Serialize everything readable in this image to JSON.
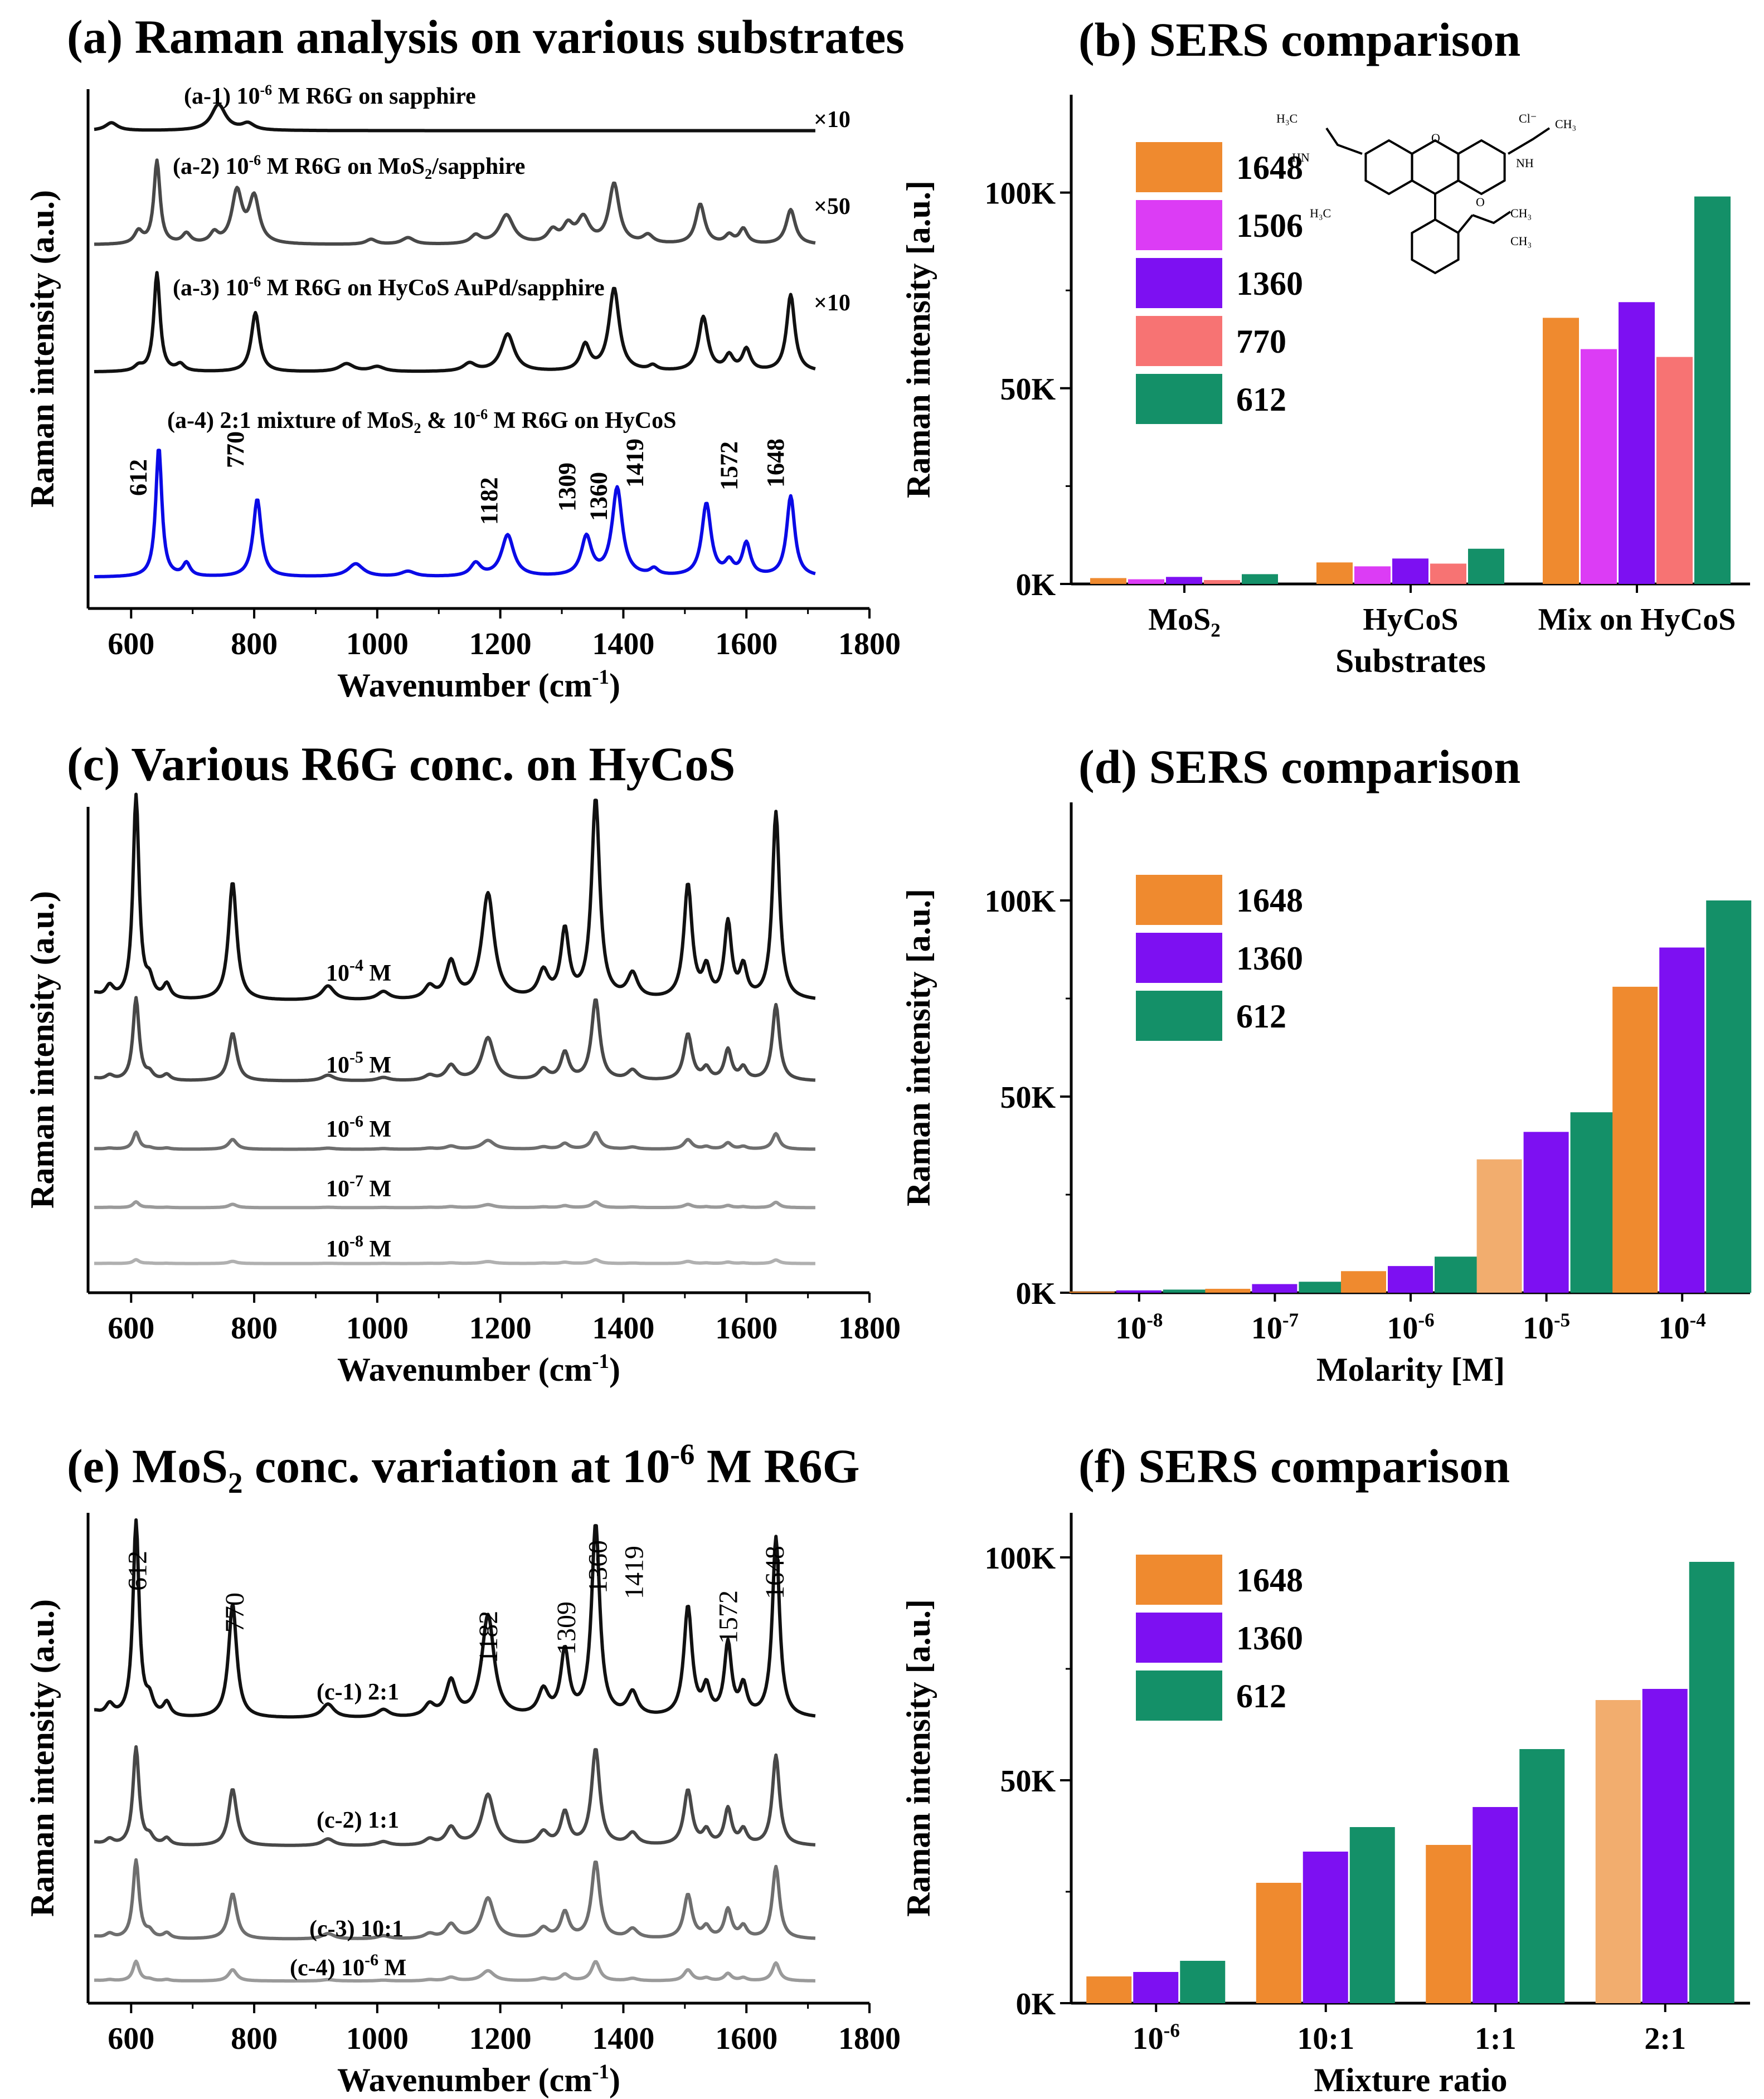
{
  "colors": {
    "c1648": "#ef8a2f",
    "c1648_light": "#f2ad6e",
    "c1506": "#dc3cf5",
    "c1360": "#7d10f2",
    "c770": "#f77373",
    "c612": "#149068",
    "blue": "#0a0ae6",
    "black": "#111111",
    "dark_gray": "#484848",
    "mid_gray": "#6e6e6e",
    "light_gray": "#9a9a9a",
    "lighter_gray": "#b0b0b0"
  },
  "chart_data": [
    {
      "id": "a",
      "type": "line",
      "title": "(a) Raman analysis on various substrates",
      "xlabel": "Wavenumber (cm",
      "xlabel_sup": "-1",
      "xlabel_end": ")",
      "ylabel": "Raman intensity (a.u.)",
      "xlim": [
        530,
        1800
      ],
      "xticks": [
        600,
        800,
        1000,
        1200,
        1400,
        1600,
        1800
      ],
      "series": [
        {
          "name": "(a-1) 10-6 M R6G on sapphire",
          "label_prefix": "(a-1) 10",
          "label_sup": "-6",
          "label_rest": " M R6G on sapphire",
          "multiplier": "×10",
          "color": "black",
          "baseline": 0.92,
          "scale": 0.05,
          "peaks": [
            [
              568,
              0.3,
              12
            ],
            [
              742,
              1.0,
              14
            ],
            [
              790,
              0.25,
              12
            ]
          ]
        },
        {
          "name": "(a-2) 10-6 M R6G on MoS2/sapphire",
          "label_prefix": "(a-2) 10",
          "label_sup": "-6",
          "label_rest": " M R6G on MoS",
          "label_sub": "2",
          "label_end": "/sapphire",
          "multiplier": "×50",
          "color": "dark_gray",
          "baseline": 0.7,
          "scale": 0.16,
          "peaks": [
            [
              612,
              0.15,
              8
            ],
            [
              642,
              1.0,
              6
            ],
            [
              690,
              0.12,
              8
            ],
            [
              735,
              0.12,
              8
            ],
            [
              772,
              0.62,
              10
            ],
            [
              800,
              0.55,
              10
            ],
            [
              990,
              0.06,
              10
            ],
            [
              1050,
              0.08,
              12
            ],
            [
              1160,
              0.1,
              10
            ],
            [
              1210,
              0.35,
              14
            ],
            [
              1285,
              0.15,
              10
            ],
            [
              1310,
              0.2,
              10
            ],
            [
              1335,
              0.3,
              12
            ],
            [
              1385,
              0.72,
              10
            ],
            [
              1440,
              0.1,
              10
            ],
            [
              1525,
              0.48,
              9
            ],
            [
              1572,
              0.1,
              8
            ],
            [
              1595,
              0.18,
              8
            ],
            [
              1672,
              0.42,
              9
            ]
          ]
        },
        {
          "name": "(a-3) 10-6 M R6G on HyCoS AuPd/sapphire",
          "label_prefix": "(a-3) 10",
          "label_sup": "-6",
          "label_rest": " M R6G on HyCoS AuPd/sapphire",
          "multiplier": "×10",
          "color": "black",
          "baseline": 0.455,
          "scale": 0.19,
          "peaks": [
            [
              612,
              0.05,
              8
            ],
            [
              642,
              1.0,
              6
            ],
            [
              680,
              0.07,
              8
            ],
            [
              802,
              0.6,
              8
            ],
            [
              950,
              0.08,
              14
            ],
            [
              1000,
              0.05,
              14
            ],
            [
              1150,
              0.08,
              12
            ],
            [
              1212,
              0.38,
              13
            ],
            [
              1338,
              0.26,
              9
            ],
            [
              1385,
              0.84,
              10
            ],
            [
              1448,
              0.05,
              8
            ],
            [
              1530,
              0.55,
              9
            ],
            [
              1572,
              0.15,
              8
            ],
            [
              1600,
              0.22,
              8
            ],
            [
              1672,
              0.78,
              8
            ]
          ]
        },
        {
          "name": "(a-4) 2:1 mixture of MoS2 & 10-6 M R6G on HyCoS",
          "label_prefix": "(a-4) 2:1 mixture of MoS",
          "label_sub": "2",
          "label_rest": " & 10",
          "label_sup": "-6",
          "label_end": " M R6G on HyCoS",
          "multiplier": "",
          "color": "blue",
          "baseline": 0.06,
          "scale": 0.25,
          "peaks": [
            [
              645,
              1.0,
              6
            ],
            [
              690,
              0.1,
              7
            ],
            [
              805,
              0.6,
              8
            ],
            [
              965,
              0.1,
              15
            ],
            [
              1050,
              0.04,
              14
            ],
            [
              1160,
              0.1,
              10
            ],
            [
              1212,
              0.32,
              12
            ],
            [
              1340,
              0.3,
              10
            ],
            [
              1390,
              0.68,
              10
            ],
            [
              1450,
              0.05,
              8
            ],
            [
              1535,
              0.56,
              9
            ],
            [
              1572,
              0.1,
              8
            ],
            [
              1600,
              0.25,
              8
            ],
            [
              1672,
              0.62,
              8
            ]
          ]
        }
      ],
      "peak_labels": [
        "612",
        "770",
        "1182",
        "1309",
        "1360",
        "1419",
        "1572",
        "1648"
      ]
    },
    {
      "id": "b",
      "type": "bar",
      "title": "(b) SERS comparison",
      "xlabel": "Substrates",
      "ylabel": "Raman intensity [a.u.]",
      "ylim": [
        0,
        125000
      ],
      "yticks": [
        0,
        50000,
        100000
      ],
      "ytick_labels": [
        "0K",
        "50K",
        "100K"
      ],
      "categories": [
        "MoS2",
        "HyCoS",
        "Mix on HyCoS"
      ],
      "category_parts": [
        [
          "MoS",
          "2"
        ],
        [
          "HyCoS",
          ""
        ],
        [
          "Mix on HyCoS",
          ""
        ]
      ],
      "series": [
        {
          "name": "1648",
          "color": "c1648",
          "values": [
            1500,
            5500,
            68000
          ]
        },
        {
          "name": "1506",
          "color": "c1506",
          "values": [
            1200,
            4500,
            60000
          ]
        },
        {
          "name": "1360",
          "color": "c1360",
          "values": [
            1800,
            6500,
            72000
          ]
        },
        {
          "name": "770",
          "color": "c770",
          "values": [
            1000,
            5200,
            58000
          ]
        },
        {
          "name": "612",
          "color": "c612",
          "values": [
            2500,
            9000,
            99000
          ]
        }
      ],
      "legend": [
        "1648",
        "1506",
        "1360",
        "770",
        "612"
      ],
      "inset": {
        "label": "R6G molecular structure",
        "atoms": [
          "H3C",
          "HN",
          "Cl-",
          "CH3",
          "NH",
          "H3C",
          "CH3",
          "O",
          "O",
          "CH3"
        ]
      }
    },
    {
      "id": "c",
      "type": "line",
      "title": "(c) Various R6G conc. on HyCoS",
      "xlabel": "Wavenumber (cm",
      "xlabel_sup": "-1",
      "xlabel_end": ")",
      "ylabel": "Raman intensity (a.u.)",
      "xlim": [
        530,
        1800
      ],
      "xticks": [
        600,
        800,
        1000,
        1200,
        1400,
        1600,
        1800
      ],
      "series": [
        {
          "name": "10-4 M",
          "label_prefix": "10",
          "label_sup": "-4",
          "label_rest": " M",
          "color": "black",
          "baseline": 0.6,
          "scale": 0.42
        },
        {
          "name": "10-5 M",
          "label_prefix": "10",
          "label_sup": "-5",
          "label_rest": " M",
          "color": "dark_gray",
          "baseline": 0.435,
          "scale": 0.17
        },
        {
          "name": "10-6 M",
          "label_prefix": "10",
          "label_sup": "-6",
          "label_rest": " M",
          "color": "mid_gray",
          "baseline": 0.295,
          "scale": 0.035
        },
        {
          "name": "10-7 M",
          "label_prefix": "10",
          "label_sup": "-7",
          "label_rest": " M",
          "color": "light_gray",
          "baseline": 0.175,
          "scale": 0.012
        },
        {
          "name": "10-8 M",
          "label_prefix": "10",
          "label_sup": "-8",
          "label_rest": " M",
          "color": "lighter_gray",
          "baseline": 0.06,
          "scale": 0.008
        }
      ],
      "peaks": [
        [
          540,
          0.03,
          12
        ],
        [
          565,
          0.06,
          8
        ],
        [
          608,
          1.0,
          6
        ],
        [
          630,
          0.08,
          7
        ],
        [
          658,
          0.07,
          7
        ],
        [
          765,
          0.58,
          8
        ],
        [
          920,
          0.07,
          12
        ],
        [
          1010,
          0.04,
          12
        ],
        [
          1085,
          0.06,
          10
        ],
        [
          1120,
          0.18,
          10
        ],
        [
          1180,
          0.52,
          12
        ],
        [
          1270,
          0.13,
          10
        ],
        [
          1305,
          0.33,
          8
        ],
        [
          1355,
          0.98,
          8
        ],
        [
          1415,
          0.12,
          10
        ],
        [
          1505,
          0.56,
          8
        ],
        [
          1535,
          0.14,
          7
        ],
        [
          1570,
          0.37,
          7
        ],
        [
          1595,
          0.15,
          7
        ],
        [
          1648,
          0.92,
          7
        ]
      ]
    },
    {
      "id": "d",
      "type": "bar",
      "title": "(d) SERS comparison",
      "xlabel": "Molarity [M]",
      "ylabel": "Raman intensity [a.u.]",
      "ylim": [
        0,
        125000
      ],
      "yticks": [
        0,
        50000,
        100000
      ],
      "ytick_labels": [
        "0K",
        "50K",
        "100K"
      ],
      "categories": [
        "10-8",
        "10-7",
        "10-6",
        "10-5",
        "10-4"
      ],
      "category_parts": [
        [
          "10",
          "-8"
        ],
        [
          "10",
          "-7"
        ],
        [
          "10",
          "-6"
        ],
        [
          "10",
          "-5"
        ],
        [
          "10",
          "-4"
        ]
      ],
      "series": [
        {
          "name": "1648",
          "color": "c1648",
          "values": [
            300,
            1000,
            5500,
            34000,
            78000
          ],
          "colors": [
            "c1648",
            "c1648",
            "c1648",
            "c1648_light",
            "c1648"
          ]
        },
        {
          "name": "1360",
          "color": "c1360",
          "values": [
            600,
            2200,
            6800,
            41000,
            88000
          ]
        },
        {
          "name": "612",
          "color": "c612",
          "values": [
            800,
            2800,
            9200,
            46000,
            100000
          ]
        }
      ],
      "legend": [
        "1648",
        "1360",
        "612"
      ]
    },
    {
      "id": "e",
      "type": "line",
      "title_prefix": "(e) MoS",
      "title_sub": "2",
      "title_mid": " conc. variation at 10",
      "title_sup": "-6",
      "title_end": " M R6G",
      "xlabel": "Wavenumber (cm",
      "xlabel_sup": "-1",
      "xlabel_end": ")",
      "ylabel": "Raman intensity (a.u.)",
      "xlim": [
        530,
        1800
      ],
      "xticks": [
        600,
        800,
        1000,
        1200,
        1400,
        1600,
        1800
      ],
      "series": [
        {
          "name": "(c-1) 2:1",
          "label_prefix": "(c-1) 2:1",
          "label_sup": "",
          "label_rest": "",
          "color": "black",
          "baseline": 0.58,
          "scale": 0.4
        },
        {
          "name": "(c-2) 1:1",
          "label_prefix": "(c-2) 1:1",
          "label_sup": "",
          "label_rest": "",
          "color": "dark_gray",
          "baseline": 0.32,
          "scale": 0.2
        },
        {
          "name": "(c-3) 10:1",
          "label_prefix": "(c-3) 10:1",
          "label_sup": "",
          "label_rest": "",
          "color": "mid_gray",
          "baseline": 0.13,
          "scale": 0.16
        },
        {
          "name": "(c-4) 10-6 M",
          "label_prefix": "(c-4) 10",
          "label_sup": "-6",
          "label_rest": " M",
          "color": "light_gray",
          "baseline": 0.045,
          "scale": 0.04
        }
      ],
      "peaks": [
        [
          540,
          0.03,
          12
        ],
        [
          565,
          0.06,
          8
        ],
        [
          608,
          1.0,
          6
        ],
        [
          630,
          0.08,
          7
        ],
        [
          658,
          0.07,
          7
        ],
        [
          765,
          0.58,
          8
        ],
        [
          920,
          0.07,
          12
        ],
        [
          1010,
          0.04,
          12
        ],
        [
          1085,
          0.06,
          10
        ],
        [
          1120,
          0.18,
          10
        ],
        [
          1180,
          0.52,
          12
        ],
        [
          1270,
          0.13,
          10
        ],
        [
          1305,
          0.33,
          8
        ],
        [
          1355,
          0.98,
          8
        ],
        [
          1415,
          0.12,
          10
        ],
        [
          1505,
          0.56,
          8
        ],
        [
          1535,
          0.14,
          7
        ],
        [
          1570,
          0.37,
          7
        ],
        [
          1595,
          0.15,
          7
        ],
        [
          1648,
          0.92,
          7
        ]
      ],
      "peak_labels": [
        "612",
        "770",
        "1182",
        "1309",
        "1360",
        "1419",
        "1572",
        "1648"
      ]
    },
    {
      "id": "f",
      "type": "bar",
      "title": "(f) SERS comparison",
      "xlabel": "Mixture ratio",
      "ylabel": "Raman intensity [a.u.]",
      "ylim": [
        0,
        110000
      ],
      "yticks": [
        0,
        50000,
        100000
      ],
      "ytick_labels": [
        "0K",
        "50K",
        "100K"
      ],
      "categories": [
        "10-6",
        "10:1",
        "1:1",
        "2:1"
      ],
      "category_parts": [
        [
          "10",
          "-6"
        ],
        [
          "10:1",
          ""
        ],
        [
          "1:1",
          ""
        ],
        [
          "2:1",
          ""
        ]
      ],
      "series": [
        {
          "name": "1648",
          "color": "c1648",
          "values": [
            6000,
            27000,
            35500,
            68000
          ],
          "colors": [
            "c1648",
            "c1648",
            "c1648",
            "c1648_light"
          ]
        },
        {
          "name": "1360",
          "color": "c1360",
          "values": [
            7000,
            34000,
            44000,
            70500
          ]
        },
        {
          "name": "612",
          "color": "c612",
          "values": [
            9500,
            39500,
            57000,
            99000
          ]
        }
      ],
      "legend": [
        "1648",
        "1360",
        "612"
      ]
    }
  ]
}
